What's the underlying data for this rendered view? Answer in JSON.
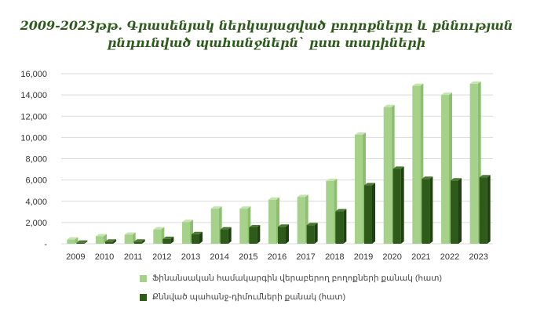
{
  "title_line1": "2009-2023թթ. Գրասենյակ ներկայացված բողոքները և քննության",
  "title_line2": "ընդունված պահանջներն` ըստ տարիների",
  "colors": {
    "series1_front": "#a6d18a",
    "series1_side": "#8cbf6e",
    "series1_top": "#c6e4b2",
    "series2_front": "#2e5a1a",
    "series2_side": "#1f4110",
    "series2_top": "#4b7a33",
    "gridline": "#d9d9d9"
  },
  "chart_data": {
    "type": "bar",
    "style": "3d-clustered-column",
    "categories": [
      "2009",
      "2010",
      "2011",
      "2012",
      "2013",
      "2014",
      "2015",
      "2016",
      "2017",
      "2018",
      "2019",
      "2020",
      "2021",
      "2022",
      "2023"
    ],
    "series": [
      {
        "name": "Ֆինանսական համակարգին վերաբերող բողոքների քանակ (հատ)",
        "values": [
          400,
          700,
          850,
          1350,
          2050,
          3300,
          3300,
          4150,
          4400,
          5900,
          10250,
          12850,
          14850,
          14000,
          15050
        ]
      },
      {
        "name": "Քննված պահանջ-դիմումների քանակ (հատ)",
        "values": [
          100,
          200,
          200,
          450,
          900,
          1350,
          1550,
          1600,
          1750,
          3050,
          5500,
          7050,
          6100,
          5950,
          6250
        ]
      }
    ],
    "ylim": [
      0,
      16000
    ],
    "yticks": [
      0,
      2000,
      4000,
      6000,
      8000,
      10000,
      12000,
      14000,
      16000
    ],
    "ytick_labels": [
      "-",
      "2,000",
      "4,000",
      "6,000",
      "8,000",
      "10,000",
      "12,000",
      "14,000",
      "16,000"
    ],
    "grid": true,
    "legend_position": "bottom"
  }
}
